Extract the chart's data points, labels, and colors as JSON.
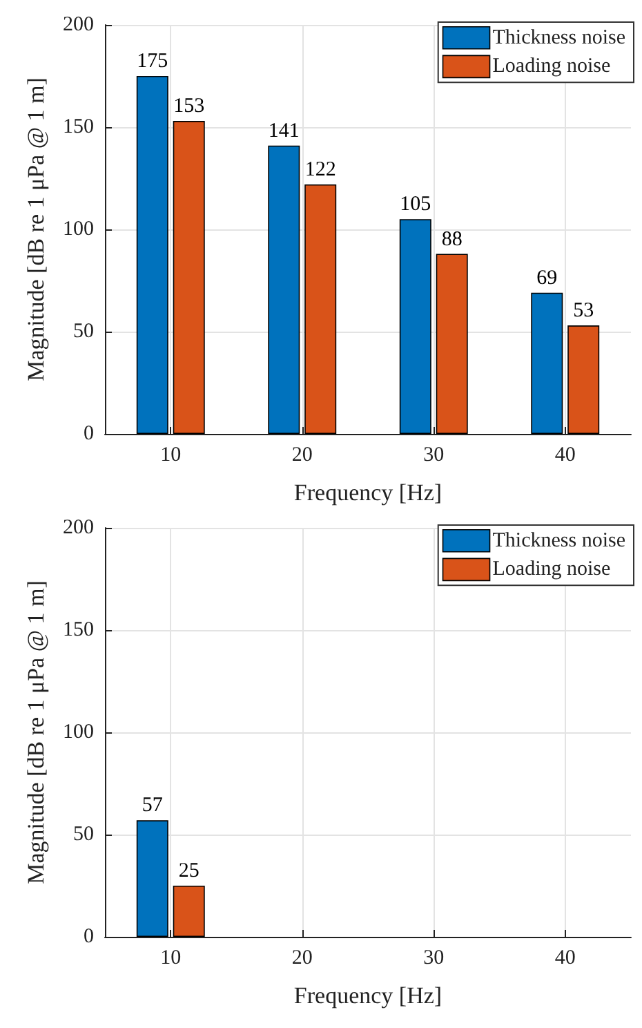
{
  "chart_data": [
    {
      "type": "bar",
      "x": [
        10,
        20,
        30,
        40
      ],
      "xlabel": "Frequency [Hz]",
      "ylabel": "Magnitude [dB re 1 μPa @ 1 m]",
      "series": [
        {
          "name": "Thickness noise",
          "color": "#0072bd",
          "values": [
            175,
            141,
            105,
            69
          ]
        },
        {
          "name": "Loading noise",
          "color": "#d95319",
          "values": [
            153,
            122,
            88,
            53
          ]
        }
      ],
      "xlim": [
        5,
        45
      ],
      "xticks": [
        10,
        20,
        30,
        40
      ],
      "ylim": [
        0,
        200
      ],
      "yticks": [
        0,
        50,
        100,
        150,
        200
      ],
      "grid": true,
      "legend": "top right",
      "data_labels": true
    },
    {
      "type": "bar",
      "x": [
        10,
        20,
        30,
        40
      ],
      "xlabel": "Frequency [Hz]",
      "ylabel": "Magnitude [dB re 1 μPa @ 1 m]",
      "series": [
        {
          "name": "Thickness noise",
          "color": "#0072bd",
          "values": [
            57,
            0,
            0,
            0
          ],
          "value_labels": [
            "57",
            null,
            null,
            null
          ]
        },
        {
          "name": "Loading noise",
          "color": "#d95319",
          "values": [
            25,
            0,
            0,
            0
          ],
          "value_labels": [
            "25",
            null,
            null,
            null
          ]
        }
      ],
      "xlim": [
        5,
        45
      ],
      "xticks": [
        10,
        20,
        30,
        40
      ],
      "ylim": [
        0,
        200
      ],
      "yticks": [
        0,
        50,
        100,
        150,
        200
      ],
      "grid": true,
      "legend": "top right"
    }
  ]
}
